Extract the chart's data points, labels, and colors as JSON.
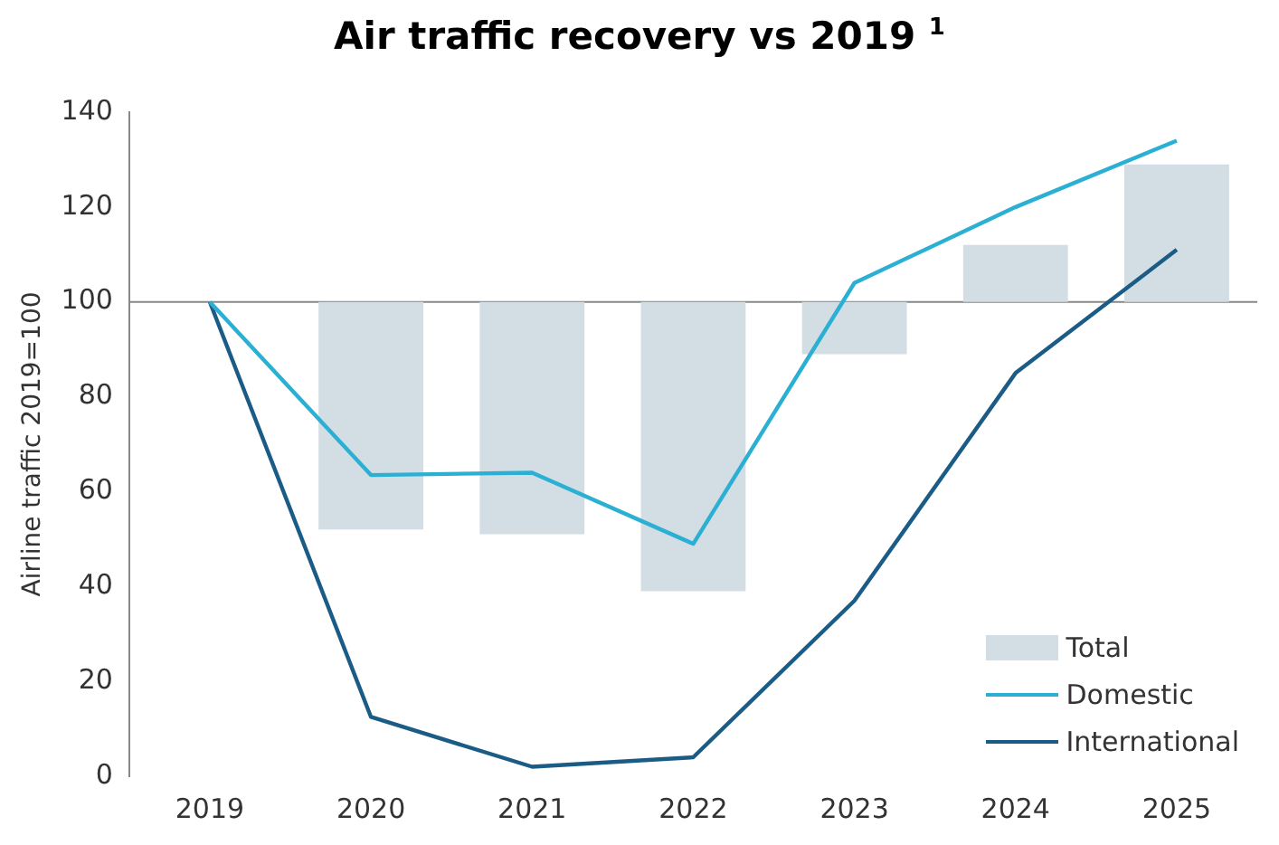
{
  "chart_data": {
    "type": "bar",
    "title": "Air traffic recovery vs 2019 $^{1}$",
    "ylabel": "Airline traffic 2019=100",
    "categories": [
      "2019",
      "2020",
      "2021",
      "2022",
      "2023",
      "2024",
      "2025"
    ],
    "series": [
      {
        "name": "Total",
        "color": "#d3dde4",
        "base": [
          null,
          100,
          100,
          100,
          100,
          100,
          100
        ],
        "values": [
          null,
          -48,
          -49,
          -61,
          -11,
          12,
          29
        ]
      },
      {
        "name": "Domestic",
        "type": "line",
        "color": "#2bb0d3",
        "values": [
          100,
          63.5,
          64,
          49,
          104,
          120,
          134
        ]
      },
      {
        "name": "International",
        "type": "line",
        "color": "#1b5c86",
        "values": [
          100,
          12.5,
          2,
          4,
          37,
          85,
          111
        ]
      }
    ],
    "ylim": [
      0,
      140
    ],
    "yticks": [
      0,
      20,
      40,
      60,
      80,
      100,
      120,
      140
    ],
    "grid": false,
    "legend": "bottom right",
    "marker": "none",
    "ref_lines": [
      {
        "axis": "y",
        "value": 100,
        "color": "#888888"
      }
    ]
  }
}
